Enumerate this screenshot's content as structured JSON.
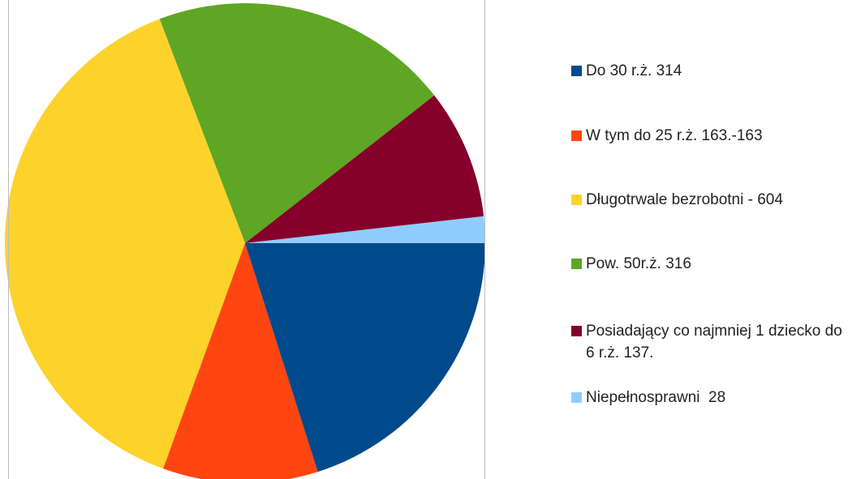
{
  "chart_data": {
    "type": "pie",
    "categories": [
      "Do 30 r.ż. 314",
      "W tym do 25 r.ż. 163.-163",
      "Długotrwale bezrobotni - 604",
      "Pow. 50r.ż. 316",
      "Posiadający co najmniej 1 dziecko do 6 r.ż. 137.",
      "Niepełnosprawni  28"
    ],
    "values": [
      314,
      163,
      604,
      316,
      137,
      28
    ],
    "colors": [
      "#004a8c",
      "#ff4611",
      "#fdd22b",
      "#5ea624",
      "#85002a",
      "#8fcdff"
    ],
    "legend": "right"
  }
}
